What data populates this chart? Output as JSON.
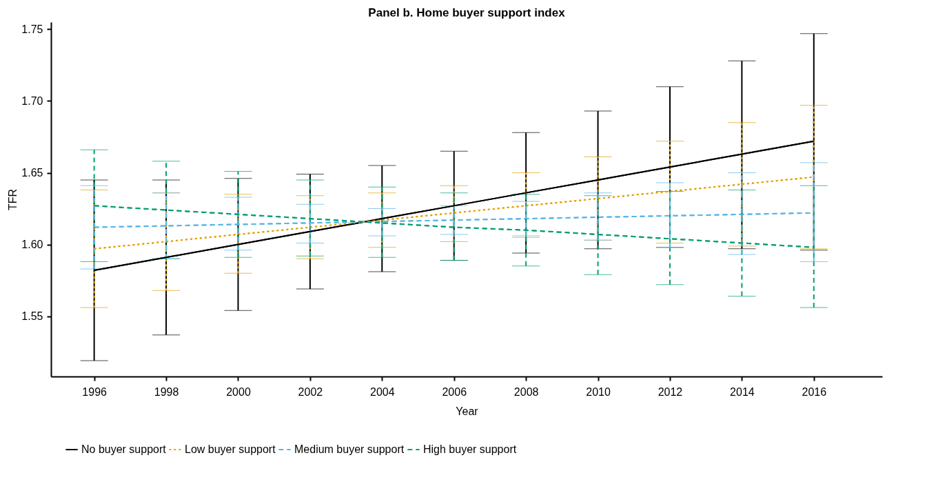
{
  "chart_data": {
    "type": "line",
    "title": "Panel b. Home buyer support index",
    "xlabel": "Year",
    "ylabel": "TFR",
    "x": [
      1996,
      1998,
      2000,
      2002,
      2004,
      2006,
      2008,
      2010,
      2012,
      2014,
      2016
    ],
    "xlim": [
      1994.8,
      2017.9
    ],
    "xticks": [
      1996,
      1998,
      2000,
      2002,
      2004,
      2006,
      2008,
      2010,
      2012,
      2014,
      2016
    ],
    "ylim": [
      1.508,
      1.755
    ],
    "yticks": [
      1.55,
      {
        "value": 1.6,
        "label": "1.60"
      },
      1.65,
      {
        "value": 1.7,
        "label": "1.70"
      },
      1.75
    ],
    "grid": false,
    "legend": "bottom",
    "marker": "none",
    "series": [
      {
        "name": "No buyer support",
        "color": "#000000",
        "line_style": "solid",
        "values": [
          1.582,
          1.591,
          1.6,
          1.609,
          1.618,
          1.627,
          1.636,
          1.645,
          1.654,
          1.663,
          1.672
        ],
        "errors": [
          [
            1.519,
            1.645
          ],
          [
            1.537,
            1.645
          ],
          [
            1.554,
            1.646
          ],
          [
            1.569,
            1.649
          ],
          [
            1.581,
            1.655
          ],
          [
            1.589,
            1.665
          ],
          [
            1.594,
            1.678
          ],
          [
            1.597,
            1.693
          ],
          [
            1.598,
            1.71
          ],
          [
            1.597,
            1.728
          ],
          [
            1.596,
            1.747
          ]
        ]
      },
      {
        "name": "Low buyer support",
        "color": "#e69f00",
        "line_style": "dotted",
        "values": [
          1.597,
          1.602,
          1.607,
          1.612,
          1.617,
          1.622,
          1.627,
          1.632,
          1.637,
          1.642,
          1.647
        ],
        "errors": [
          [
            1.556,
            1.638
          ],
          [
            1.568,
            1.636
          ],
          [
            1.58,
            1.635
          ],
          [
            1.59,
            1.634
          ],
          [
            1.598,
            1.636
          ],
          [
            1.602,
            1.641
          ],
          [
            1.605,
            1.65
          ],
          [
            1.603,
            1.661
          ],
          [
            1.601,
            1.672
          ],
          [
            1.599,
            1.685
          ],
          [
            1.597,
            1.697
          ]
        ]
      },
      {
        "name": "Medium buyer support",
        "color": "#56b4e9",
        "line_style": "dashed",
        "values": [
          1.612,
          1.613,
          1.614,
          1.615,
          1.616,
          1.617,
          1.618,
          1.619,
          1.62,
          1.621,
          1.622
        ],
        "errors": [
          [
            1.583,
            1.641
          ],
          [
            1.59,
            1.636
          ],
          [
            1.596,
            1.633
          ],
          [
            1.601,
            1.628
          ],
          [
            1.606,
            1.625
          ],
          [
            1.607,
            1.627
          ],
          [
            1.606,
            1.63
          ],
          [
            1.603,
            1.636
          ],
          [
            1.598,
            1.643
          ],
          [
            1.593,
            1.65
          ],
          [
            1.588,
            1.657
          ]
        ]
      },
      {
        "name": "High buyer support",
        "color": "#009e73",
        "line_style": "dashed",
        "values": [
          1.627,
          1.624,
          1.621,
          1.618,
          1.615,
          1.612,
          1.61,
          1.607,
          1.604,
          1.601,
          1.598
        ],
        "errors": [
          [
            1.588,
            1.666
          ],
          [
            1.59,
            1.658
          ],
          [
            1.591,
            1.651
          ],
          [
            1.592,
            1.645
          ],
          [
            1.591,
            1.64
          ],
          [
            1.589,
            1.636
          ],
          [
            1.585,
            1.635
          ],
          [
            1.579,
            1.634
          ],
          [
            1.572,
            1.637
          ],
          [
            1.564,
            1.638
          ],
          [
            1.556,
            1.641
          ]
        ]
      }
    ]
  }
}
